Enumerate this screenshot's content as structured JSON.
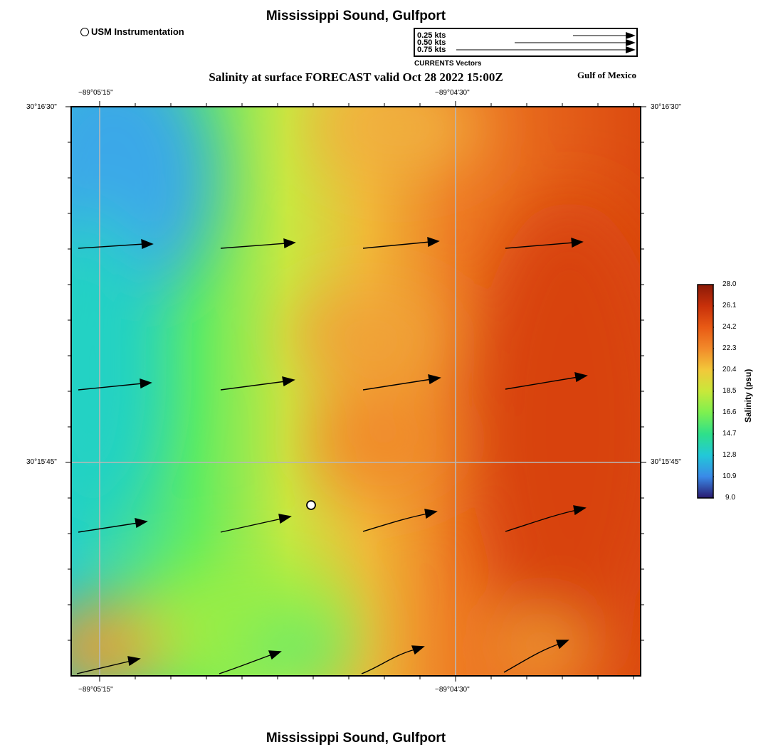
{
  "header": {
    "title": "Mississippi Sound, Gulfport",
    "subtitle": "Salinity at surface FORECAST valid Oct 28 2022 15:00Z",
    "region": "Gulf of Mexico",
    "footer_title": "Mississippi Sound, Gulfport"
  },
  "legend": {
    "instrument_label": "USM Instrumentation",
    "vector_scale": [
      "0.25 kts",
      "0.50 kts",
      "0.75 kts"
    ],
    "vector_title": "CURRENTS Vectors"
  },
  "axes": {
    "top_ticks": [
      "−89°05'15\"",
      "−89°04'30\""
    ],
    "bottom_ticks": [
      "−89°05'15\"",
      "−89°04'30\""
    ],
    "left_ticks": [
      "30°16'30\"",
      "30°15'45\""
    ],
    "right_ticks": [
      "30°16'30\"",
      "30°15'45\""
    ]
  },
  "colorbar": {
    "title": "Salinity (psu)",
    "labels": [
      "28.0",
      "26.1",
      "24.2",
      "22.3",
      "20.4",
      "18.5",
      "16.6",
      "14.7",
      "12.8",
      "10.9",
      "9.0"
    ],
    "colors": [
      "#8a1a08",
      "#c8300a",
      "#e85a15",
      "#f28a2a",
      "#f2c83a",
      "#c8e83a",
      "#7df050",
      "#2ee08a",
      "#22c8d8",
      "#3a8ae8",
      "#2a1a70"
    ]
  },
  "map": {
    "instrument_marker": "usm-station-marker",
    "colors": {
      "blue": "#3aa8e8",
      "cyan": "#20d4c8",
      "green": "#50f070",
      "lime": "#a8f040",
      "yellow": "#e0e040",
      "orange": "#f09a30",
      "dark_orange": "#ec6a20",
      "red_orange": "#d8420c"
    }
  }
}
